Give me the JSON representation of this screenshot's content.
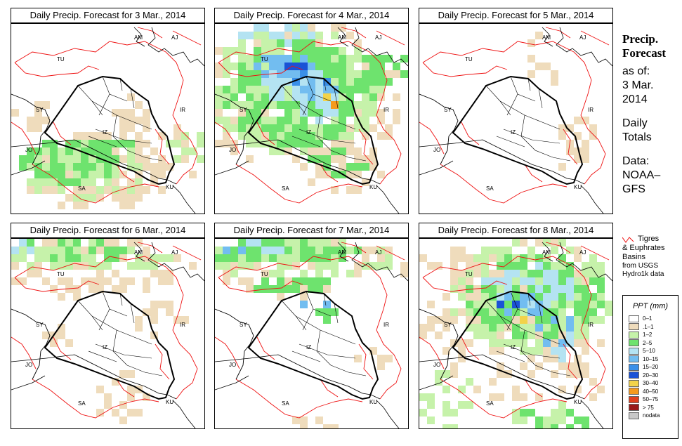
{
  "panels": [
    {
      "title": "Daily Precip. Forecast for  3 Mar., 2014",
      "pattern": "d3"
    },
    {
      "title": "Daily Precip. Forecast for  4 Mar., 2014",
      "pattern": "d4"
    },
    {
      "title": "Daily Precip. Forecast for  5 Mar., 2014",
      "pattern": "d5"
    },
    {
      "title": "Daily Precip. Forecast for  6 Mar., 2014",
      "pattern": "d6"
    },
    {
      "title": "Daily Precip. Forecast for  7 Mar., 2014",
      "pattern": "d7"
    },
    {
      "title": "Daily Precip. Forecast for  8 Mar., 2014",
      "pattern": "d8"
    }
  ],
  "country_labels": [
    "AM",
    "AJ",
    "TU",
    "SY",
    "IR",
    "JO",
    "SA",
    "KU",
    "IZ"
  ],
  "sidebar": {
    "title1": "Precip.",
    "title2": "Forecast",
    "asof": "as of:",
    "date1": "3 Mar.",
    "date2": "2014",
    "totals1": "Daily",
    "totals2": "Totals",
    "data1": "Data:",
    "data2": "NOAA–",
    "data3": "GFS"
  },
  "basin_note": {
    "line1": "Tigres",
    "line2": "& Euphrates",
    "line3": "Basins",
    "line4": "from USGS",
    "line5": "Hydro1k data"
  },
  "legend": {
    "title": "PPT (mm)",
    "items": [
      {
        "label": "0–1",
        "color": "#ffffff"
      },
      {
        "label": ".1–1",
        "color": "#efdcbc"
      },
      {
        "label": "1–2",
        "color": "#c6f2aa"
      },
      {
        "label": "2–5",
        "color": "#6ee36e"
      },
      {
        "label": "5–10",
        "color": "#b4e3f2"
      },
      {
        "label": "10–15",
        "color": "#72bdf0"
      },
      {
        "label": "15–20",
        "color": "#3a8fe8"
      },
      {
        "label": "20–30",
        "color": "#1a52d6"
      },
      {
        "label": "30–40",
        "color": "#f2d34a"
      },
      {
        "label": "40–50",
        "color": "#f59a1e"
      },
      {
        "label": "50–75",
        "color": "#e0401e"
      },
      {
        "label": "> 75",
        "color": "#9a1a1a"
      },
      {
        "label": "nodata",
        "color": "#c8c8c8"
      }
    ]
  }
}
